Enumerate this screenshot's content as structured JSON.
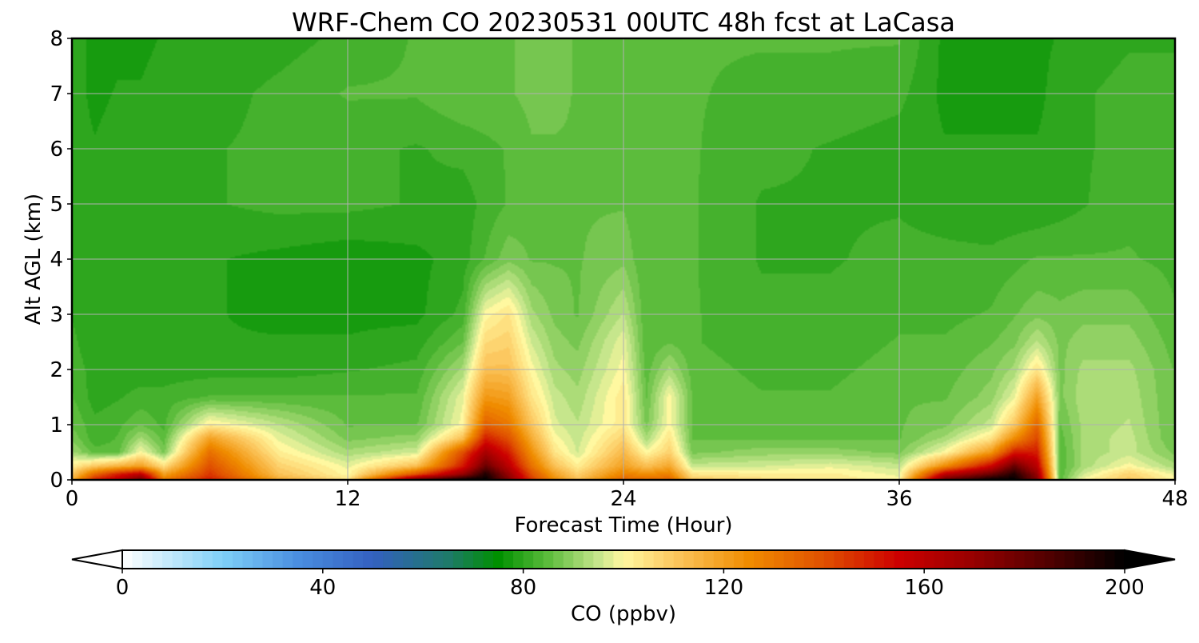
{
  "chart_data": {
    "type": "heatmap",
    "title": "WRF-Chem CO  20230531 00UTC 48h fcst at LaCasa",
    "xlabel": "Forecast Time (Hour)",
    "ylabel": "Alt AGL (km)",
    "xlim": [
      0,
      48
    ],
    "ylim": [
      0,
      8
    ],
    "x_ticks": [
      "0",
      "12",
      "24",
      "36",
      "48"
    ],
    "x_tick_values": [
      0,
      12,
      24,
      36,
      48
    ],
    "y_ticks": [
      "0",
      "1",
      "2",
      "3",
      "4",
      "5",
      "6",
      "7",
      "8"
    ],
    "y_tick_values": [
      0,
      1,
      2,
      3,
      4,
      5,
      6,
      7,
      8
    ],
    "grid": true,
    "colorbar": {
      "label": "CO  (ppbv)",
      "range": [
        0,
        200
      ],
      "extend": "both",
      "ticks": [
        "0",
        "40",
        "80",
        "120",
        "160",
        "200"
      ],
      "tick_values": [
        0,
        40,
        80,
        120,
        160,
        200
      ],
      "stops": [
        {
          "value": 0,
          "color": "#ffffff"
        },
        {
          "value": 20,
          "color": "#7fd0f8"
        },
        {
          "value": 35,
          "color": "#4a8ee0"
        },
        {
          "value": 50,
          "color": "#3360c0"
        },
        {
          "value": 65,
          "color": "#1e7a6a"
        },
        {
          "value": 75,
          "color": "#009000"
        },
        {
          "value": 85,
          "color": "#5cbc3c"
        },
        {
          "value": 95,
          "color": "#c6e68c"
        },
        {
          "value": 100,
          "color": "#fff8a0"
        },
        {
          "value": 110,
          "color": "#fcc860"
        },
        {
          "value": 125,
          "color": "#f08c00"
        },
        {
          "value": 140,
          "color": "#e05000"
        },
        {
          "value": 155,
          "color": "#cc0000"
        },
        {
          "value": 170,
          "color": "#960000"
        },
        {
          "value": 185,
          "color": "#500000"
        },
        {
          "value": 200,
          "color": "#000000"
        }
      ]
    },
    "field": {
      "hours": [
        0,
        1,
        2,
        3,
        4,
        6,
        9,
        12,
        15,
        17,
        18,
        19,
        20,
        21,
        22,
        24,
        25,
        26,
        27,
        30,
        33,
        36,
        38,
        40,
        41,
        42,
        43,
        44,
        46,
        48
      ],
      "altitudes_km": [
        0,
        0.1,
        0.25,
        0.5,
        0.75,
        1.0,
        1.5,
        2.0,
        2.5,
        3.0,
        4.0,
        5.0,
        6.0,
        7.0,
        8.0
      ],
      "co_ppbv": [
        [
          115,
          150,
          160,
          180,
          130,
          150,
          118,
          104,
          180,
          200,
          200,
          175,
          145,
          125,
          112,
          135,
          132,
          135,
          110,
          105,
          103,
          100,
          180,
          200,
          200,
          175,
          85,
          100,
          110,
          100
        ],
        [
          110,
          135,
          150,
          160,
          120,
          145,
          112,
          100,
          140,
          170,
          195,
          170,
          140,
          120,
          108,
          128,
          125,
          128,
          104,
          102,
          102,
          98,
          160,
          180,
          195,
          170,
          84,
          96,
          108,
          98
        ],
        [
          102,
          110,
          115,
          120,
          105,
          140,
          108,
          98,
          112,
          150,
          180,
          160,
          132,
          112,
          102,
          120,
          112,
          118,
          95,
          96,
          98,
          95,
          125,
          155,
          180,
          160,
          84,
          92,
          100,
          92
        ],
        [
          92,
          85,
          85,
          100,
          88,
          132,
          102,
          92,
          96,
          140,
          165,
          150,
          124,
          104,
          96,
          114,
          100,
          108,
          88,
          90,
          90,
          88,
          100,
          122,
          150,
          150,
          84,
          92,
          95,
          88
        ],
        [
          88,
          82,
          84,
          92,
          85,
          120,
          98,
          88,
          90,
          112,
          150,
          140,
          117,
          100,
          95,
          108,
          92,
          104,
          86,
          86,
          86,
          86,
          92,
          104,
          125,
          142,
          85,
          92,
          95,
          86
        ],
        [
          86,
          82,
          83,
          86,
          83,
          102,
          94,
          86,
          86,
          100,
          136,
          130,
          111,
          97,
          94,
          103,
          88,
          100,
          86,
          85,
          85,
          86,
          88,
          95,
          110,
          135,
          86,
          92,
          94,
          86
        ],
        [
          84,
          80,
          81,
          82,
          82,
          84,
          84,
          84,
          84,
          98,
          122,
          120,
          104,
          95,
          92,
          103,
          86,
          100,
          86,
          84,
          84,
          86,
          86,
          90,
          98,
          120,
          88,
          93,
          93,
          86
        ],
        [
          83,
          80,
          80,
          80,
          80,
          80,
          80,
          81,
          82,
          92,
          112,
          112,
          100,
          92,
          90,
          100,
          85,
          92,
          85,
          83,
          83,
          85,
          85,
          88,
          92,
          104,
          88,
          92,
          92,
          86
        ],
        [
          82,
          79,
          79,
          79,
          79,
          79,
          79,
          79,
          80,
          86,
          106,
          108,
          96,
          90,
          88,
          98,
          84,
          86,
          84,
          82,
          82,
          84,
          84,
          86,
          88,
          94,
          88,
          90,
          90,
          85
        ],
        [
          81,
          79,
          79,
          79,
          79,
          79,
          78,
          78,
          78,
          82,
          100,
          104,
          92,
          88,
          86,
          94,
          84,
          84,
          84,
          82,
          82,
          83,
          83,
          84,
          86,
          88,
          87,
          88,
          88,
          84
        ],
        [
          80,
          79,
          79,
          79,
          79,
          79,
          78,
          77,
          78,
          80,
          84,
          88,
          86,
          86,
          86,
          88,
          84,
          84,
          84,
          81,
          81,
          82,
          82,
          82,
          83,
          84,
          84,
          84,
          84,
          83
        ],
        [
          80,
          79,
          80,
          80,
          80,
          81,
          82,
          82,
          81,
          80,
          82,
          84,
          85,
          86,
          86,
          86,
          84,
          84,
          84,
          81,
          81,
          81,
          80,
          79,
          79,
          79,
          80,
          81,
          83,
          82
        ],
        [
          80,
          79,
          80,
          80,
          80,
          81,
          82,
          82,
          81,
          82,
          83,
          84,
          86,
          86,
          86,
          86,
          84,
          84,
          84,
          82,
          81,
          80,
          79,
          79,
          79,
          79,
          80,
          81,
          82,
          82
        ],
        [
          80,
          78,
          79,
          79,
          80,
          80,
          82,
          84,
          84,
          86,
          86,
          86,
          87,
          87,
          86,
          86,
          84,
          84,
          84,
          83,
          83,
          82,
          78,
          78,
          78,
          78,
          80,
          81,
          82,
          82
        ],
        [
          80,
          78,
          78,
          78,
          79,
          79,
          80,
          82,
          84,
          86,
          86,
          86,
          87,
          87,
          86,
          86,
          84,
          86,
          84,
          84,
          84,
          84,
          78,
          78,
          78,
          78,
          79,
          80,
          81,
          81
        ]
      ]
    }
  }
}
